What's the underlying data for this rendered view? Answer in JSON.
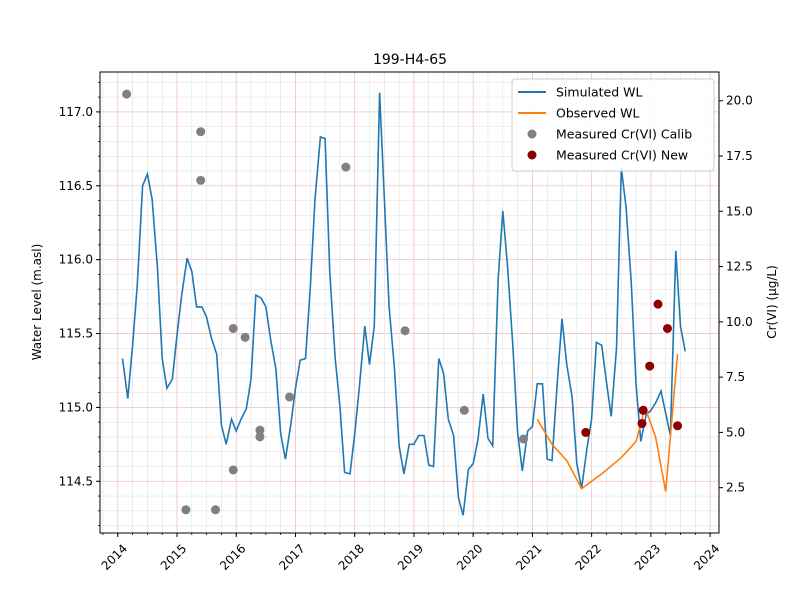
{
  "chart_data": {
    "type": "line",
    "title": "199-H4-65",
    "ylabel": "Water Level (m.asl)",
    "y2label": "Cr(VI) (µg/L)",
    "xlim": [
      2013.7,
      2024.15
    ],
    "ylim": [
      114.15,
      117.27
    ],
    "y2lim": [
      0.45,
      21.3
    ],
    "x_ticks": [
      2014,
      2015,
      2016,
      2017,
      2018,
      2019,
      2020,
      2021,
      2022,
      2023,
      2024
    ],
    "y_ticks": [
      114.5,
      115.0,
      115.5,
      116.0,
      116.5,
      117.0
    ],
    "y2_ticks": [
      2.5,
      5.0,
      7.5,
      10.0,
      12.5,
      15.0,
      17.5,
      20.0
    ],
    "grid": true,
    "legend_position": "upper-right",
    "legend": [
      {
        "label": "Simulated WL",
        "kind": "line",
        "color": "#1f77b4"
      },
      {
        "label": "Observed WL",
        "kind": "line",
        "color": "#ff7f0e"
      },
      {
        "label": "Measured Cr(VI) Calib",
        "kind": "point",
        "color": "#808080"
      },
      {
        "label": "Measured Cr(VI) New",
        "kind": "point",
        "color": "#8b0000"
      }
    ],
    "series": [
      {
        "name": "Simulated WL",
        "axis": "left",
        "kind": "line",
        "color": "#1f77b4",
        "points": [
          [
            2014.08,
            115.33
          ],
          [
            2014.17,
            115.06
          ],
          [
            2014.25,
            115.42
          ],
          [
            2014.33,
            115.83
          ],
          [
            2014.42,
            116.5
          ],
          [
            2014.5,
            116.58
          ],
          [
            2014.58,
            116.41
          ],
          [
            2014.67,
            115.94
          ],
          [
            2014.75,
            115.33
          ],
          [
            2014.83,
            115.13
          ],
          [
            2014.92,
            115.19
          ],
          [
            2015.0,
            115.49
          ],
          [
            2015.08,
            115.76
          ],
          [
            2015.17,
            116.01
          ],
          [
            2015.25,
            115.92
          ],
          [
            2015.33,
            115.68
          ],
          [
            2015.42,
            115.68
          ],
          [
            2015.5,
            115.61
          ],
          [
            2015.58,
            115.47
          ],
          [
            2015.67,
            115.36
          ],
          [
            2015.75,
            114.88
          ],
          [
            2015.83,
            114.75
          ],
          [
            2015.92,
            114.92
          ],
          [
            2016.0,
            114.84
          ],
          [
            2016.08,
            114.92
          ],
          [
            2016.17,
            114.99
          ],
          [
            2016.25,
            115.19
          ],
          [
            2016.33,
            115.76
          ],
          [
            2016.42,
            115.74
          ],
          [
            2016.5,
            115.68
          ],
          [
            2016.58,
            115.46
          ],
          [
            2016.67,
            115.26
          ],
          [
            2016.75,
            114.82
          ],
          [
            2016.83,
            114.65
          ],
          [
            2016.92,
            114.88
          ],
          [
            2017.0,
            115.13
          ],
          [
            2017.08,
            115.32
          ],
          [
            2017.17,
            115.33
          ],
          [
            2017.25,
            115.81
          ],
          [
            2017.33,
            116.41
          ],
          [
            2017.42,
            116.83
          ],
          [
            2017.5,
            116.82
          ],
          [
            2017.58,
            115.91
          ],
          [
            2017.67,
            115.33
          ],
          [
            2017.75,
            115.01
          ],
          [
            2017.83,
            114.56
          ],
          [
            2017.92,
            114.55
          ],
          [
            2018.0,
            114.82
          ],
          [
            2018.08,
            115.14
          ],
          [
            2018.17,
            115.55
          ],
          [
            2018.25,
            115.29
          ],
          [
            2018.33,
            115.55
          ],
          [
            2018.42,
            117.13
          ],
          [
            2018.5,
            116.42
          ],
          [
            2018.58,
            115.68
          ],
          [
            2018.67,
            115.27
          ],
          [
            2018.75,
            114.74
          ],
          [
            2018.83,
            114.55
          ],
          [
            2018.92,
            114.75
          ],
          [
            2019.0,
            114.75
          ],
          [
            2019.08,
            114.81
          ],
          [
            2019.17,
            114.81
          ],
          [
            2019.25,
            114.61
          ],
          [
            2019.33,
            114.6
          ],
          [
            2019.42,
            115.33
          ],
          [
            2019.5,
            115.23
          ],
          [
            2019.58,
            114.92
          ],
          [
            2019.67,
            114.81
          ],
          [
            2019.75,
            114.39
          ],
          [
            2019.83,
            114.27
          ],
          [
            2019.92,
            114.58
          ],
          [
            2020.0,
            114.62
          ],
          [
            2020.08,
            114.78
          ],
          [
            2020.17,
            115.09
          ],
          [
            2020.25,
            114.79
          ],
          [
            2020.33,
            114.74
          ],
          [
            2020.42,
            115.86
          ],
          [
            2020.5,
            116.33
          ],
          [
            2020.58,
            115.96
          ],
          [
            2020.67,
            115.41
          ],
          [
            2020.75,
            114.83
          ],
          [
            2020.83,
            114.57
          ],
          [
            2020.92,
            114.84
          ],
          [
            2021.0,
            114.87
          ],
          [
            2021.08,
            115.16
          ],
          [
            2021.17,
            115.16
          ],
          [
            2021.25,
            114.65
          ],
          [
            2021.33,
            114.64
          ],
          [
            2021.42,
            115.17
          ],
          [
            2021.5,
            115.6
          ],
          [
            2021.58,
            115.29
          ],
          [
            2021.67,
            115.07
          ],
          [
            2021.75,
            114.62
          ],
          [
            2021.83,
            114.45
          ],
          [
            2021.92,
            114.72
          ],
          [
            2022.0,
            114.92
          ],
          [
            2022.08,
            115.44
          ],
          [
            2022.17,
            115.42
          ],
          [
            2022.25,
            115.17
          ],
          [
            2022.33,
            114.94
          ],
          [
            2022.42,
            115.4
          ],
          [
            2022.5,
            116.62
          ],
          [
            2022.58,
            116.36
          ],
          [
            2022.67,
            115.84
          ],
          [
            2022.75,
            115.15
          ],
          [
            2022.83,
            114.77
          ],
          [
            2022.92,
            114.95
          ],
          [
            2023.0,
            114.98
          ],
          [
            2023.08,
            115.03
          ],
          [
            2023.17,
            115.11
          ],
          [
            2023.25,
            114.96
          ],
          [
            2023.33,
            114.81
          ],
          [
            2023.42,
            116.06
          ],
          [
            2023.5,
            115.55
          ],
          [
            2023.58,
            115.38
          ]
        ]
      },
      {
        "name": "Observed WL",
        "axis": "left",
        "kind": "line",
        "color": "#ff7f0e",
        "points": [
          [
            2021.08,
            114.92
          ],
          [
            2021.33,
            114.75
          ],
          [
            2021.58,
            114.64
          ],
          [
            2021.83,
            114.45
          ],
          [
            2022.17,
            114.55
          ],
          [
            2022.5,
            114.66
          ],
          [
            2022.75,
            114.77
          ],
          [
            2022.9,
            115.0
          ],
          [
            2023.08,
            114.8
          ],
          [
            2023.25,
            114.43
          ],
          [
            2023.45,
            115.36
          ]
        ]
      },
      {
        "name": "Measured Cr(VI) Calib",
        "axis": "right",
        "kind": "scatter",
        "color": "#808080",
        "points": [
          [
            2014.15,
            20.3
          ],
          [
            2015.4,
            18.6
          ],
          [
            2015.4,
            16.4
          ],
          [
            2015.95,
            9.7
          ],
          [
            2016.15,
            9.3
          ],
          [
            2017.85,
            17.0
          ],
          [
            2016.9,
            6.6
          ],
          [
            2016.4,
            5.1
          ],
          [
            2016.4,
            4.8
          ],
          [
            2015.95,
            3.3
          ],
          [
            2015.15,
            1.5
          ],
          [
            2015.65,
            1.5
          ],
          [
            2018.85,
            9.6
          ],
          [
            2019.85,
            6.0
          ],
          [
            2020.85,
            4.7
          ]
        ]
      },
      {
        "name": "Measured Cr(VI) New",
        "axis": "right",
        "kind": "scatter",
        "color": "#8b0000",
        "points": [
          [
            2021.9,
            5.0
          ],
          [
            2022.87,
            6.0
          ],
          [
            2022.85,
            5.4
          ],
          [
            2022.98,
            8.0
          ],
          [
            2023.12,
            10.8
          ],
          [
            2023.28,
            9.7
          ],
          [
            2023.45,
            5.3
          ]
        ]
      }
    ]
  }
}
